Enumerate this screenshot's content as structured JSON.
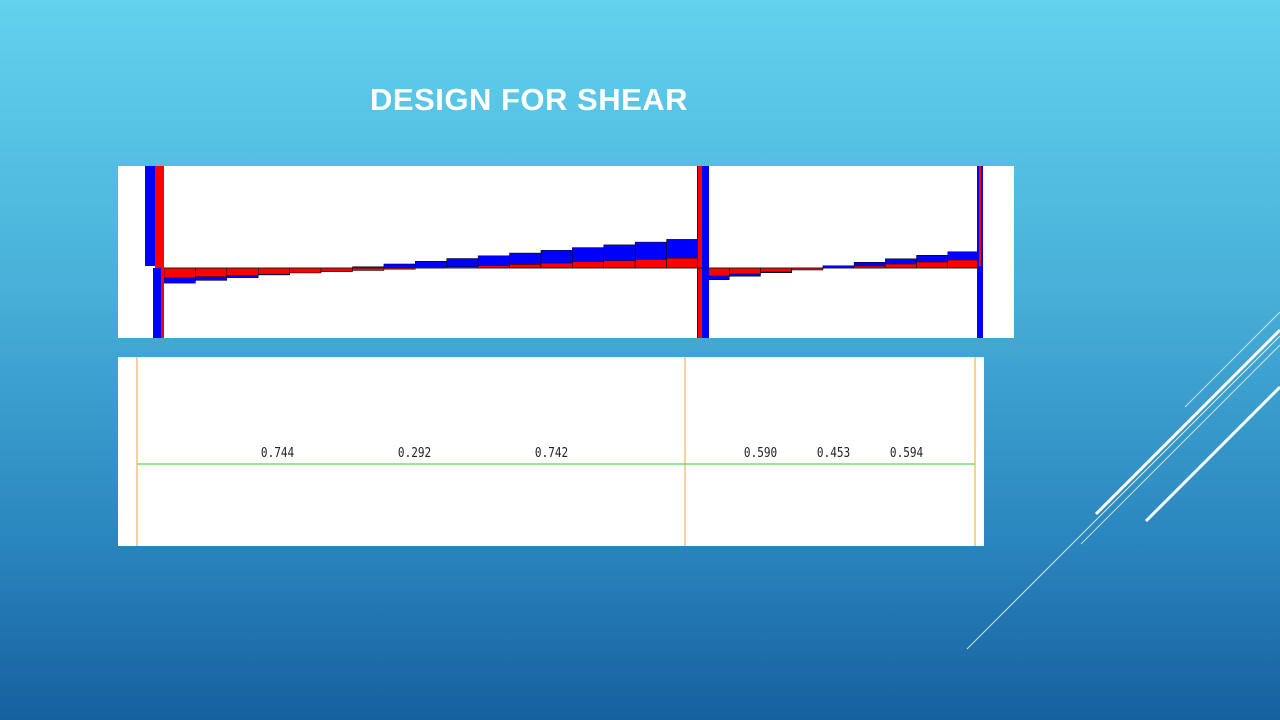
{
  "slide": {
    "title": "DESIGN FOR SHEAR"
  },
  "colors": {
    "positive": "#0000ff",
    "negative": "#ff0000",
    "axis": "#33cc33",
    "support": "#f0a030",
    "edge": "#333333"
  },
  "diagram": {
    "spans": [
      {
        "id": "span-1",
        "segments": 17,
        "shear_start": 0.55,
        "shear_end": -1.0,
        "red_start": 0.35,
        "red_end": -0.35
      },
      {
        "id": "span-2",
        "segments": 9,
        "shear_start": 0.45,
        "shear_end": -0.6,
        "red_start": 0.3,
        "red_end": -0.3
      }
    ]
  },
  "values": {
    "span_1": [
      "0.744",
      "0.292",
      "0.742"
    ],
    "span_2": [
      "0.590",
      "0.453",
      "0.594"
    ]
  }
}
